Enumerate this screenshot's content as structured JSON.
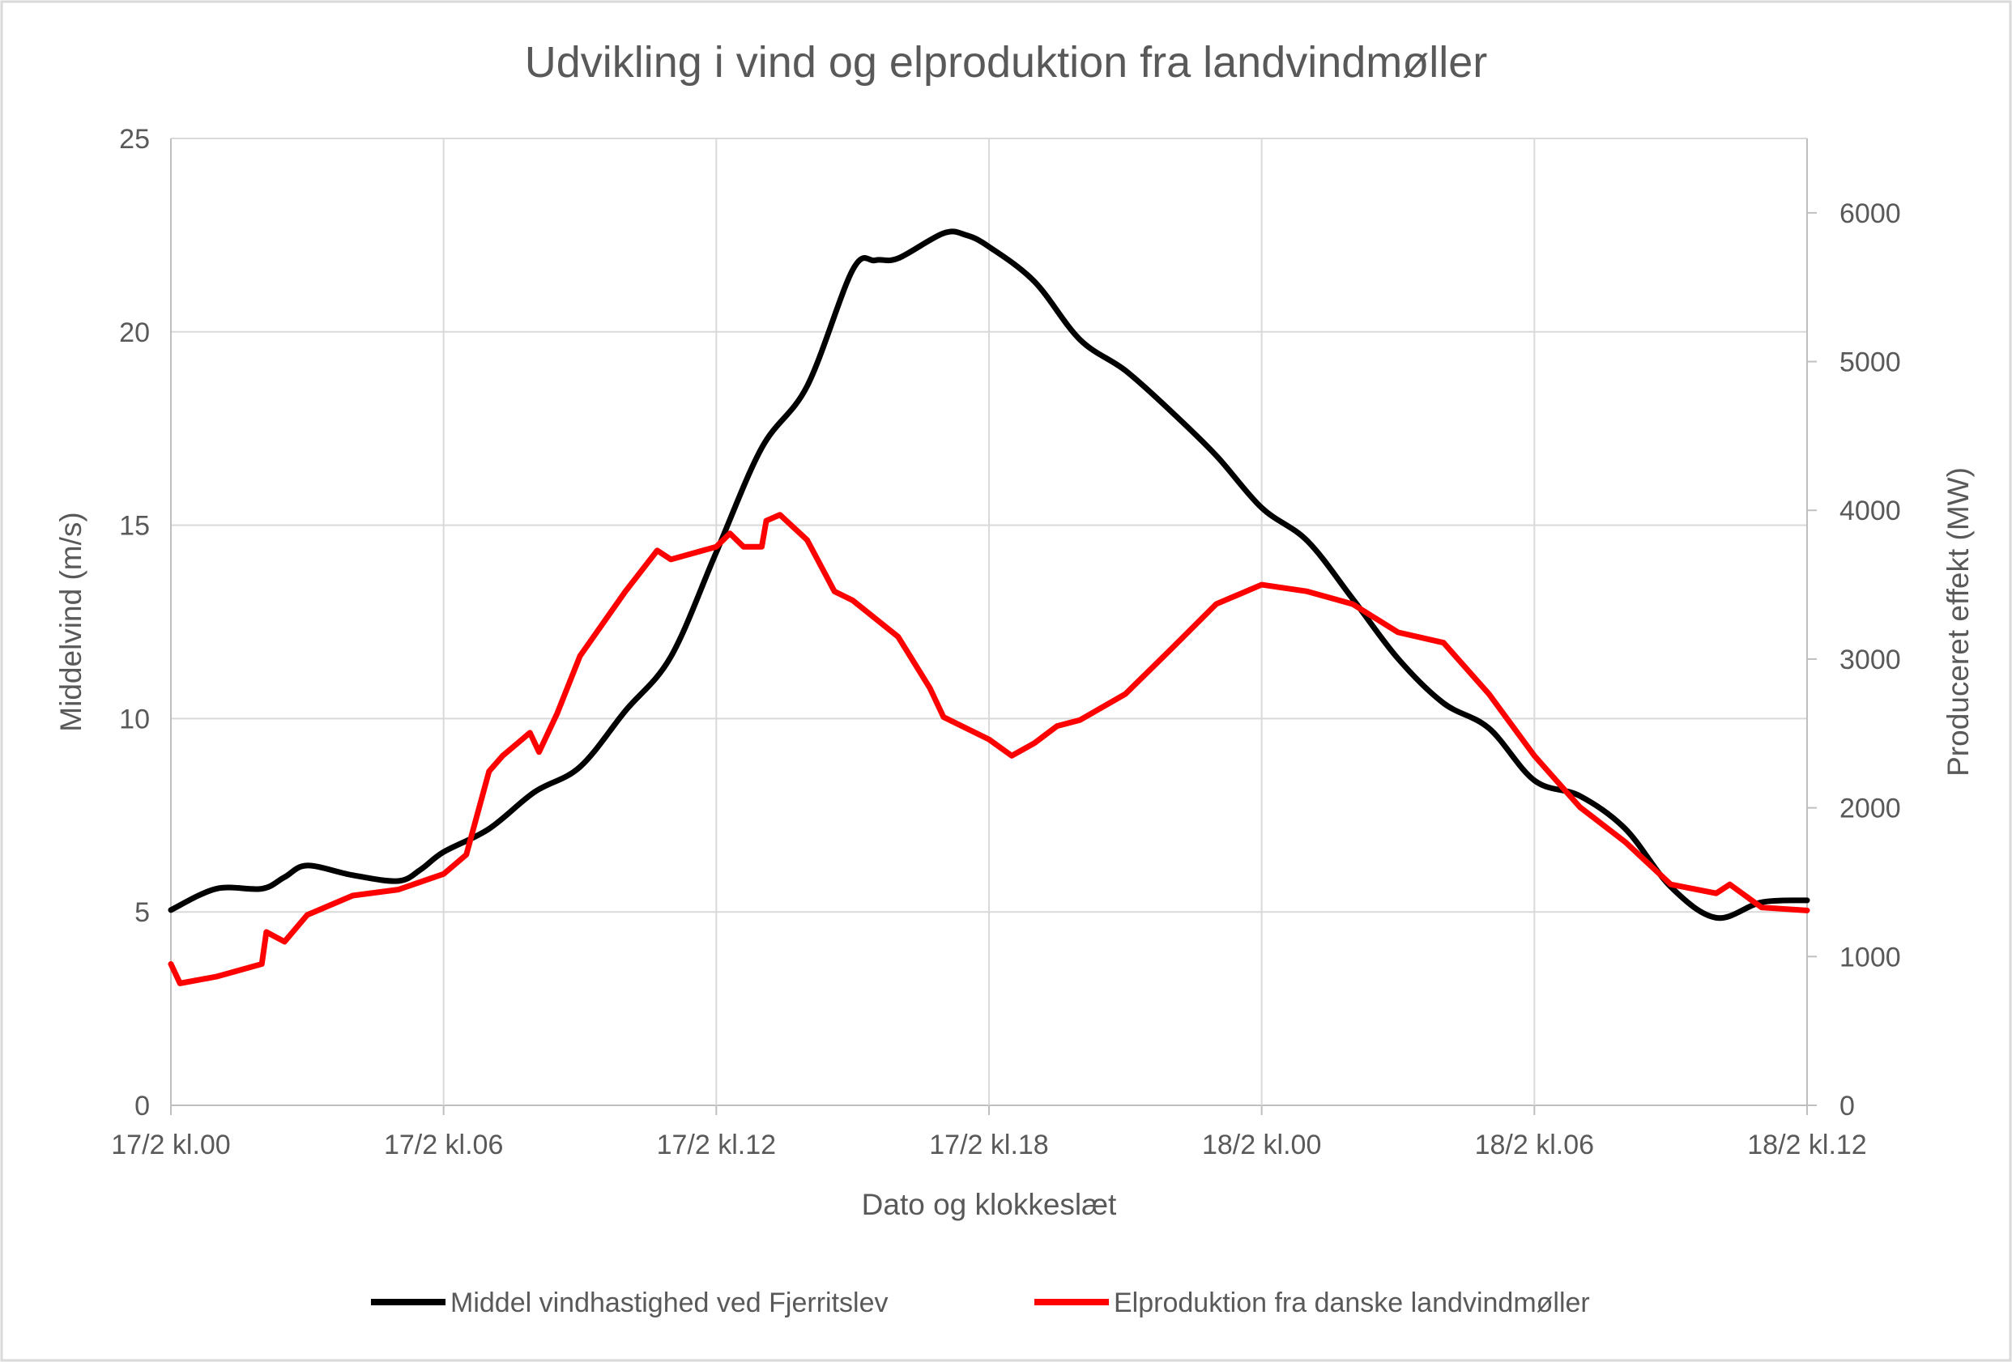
{
  "chart_data": {
    "type": "line",
    "title": "Udvikling i vind og elproduktion fra landvindmøller",
    "xlabel": "Dato og klokkeslæt",
    "ylabel": "Middelvind (m/s)",
    "y2label": "Produceret effekt  (MW)",
    "xticks": [
      "17/2 kl.00",
      "17/2 kl.06",
      "17/2 kl.12",
      "17/2 kl.18",
      "18/2 kl.00",
      "18/2 kl.06",
      "18/2 kl.12"
    ],
    "xlim": [
      "17/2 00:00",
      "18/2 12:00"
    ],
    "ylim": [
      0,
      25
    ],
    "yticks": [
      0,
      5,
      10,
      15,
      20,
      25
    ],
    "y2lim": [
      0,
      6500
    ],
    "y2ticks": [
      0,
      1000,
      2000,
      3000,
      4000,
      5000,
      6000
    ],
    "grid": true,
    "legend_position": "bottom",
    "series": [
      {
        "name": "Middel vindhastighed ved Fjerritslev",
        "axis": "left",
        "color": "#000000",
        "x": [
          "17/2 00:00",
          "17/2 01:00",
          "17/2 02:00",
          "17/2 02:30",
          "17/2 03:00",
          "17/2 04:00",
          "17/2 05:00",
          "17/2 05:30",
          "17/2 06:00",
          "17/2 07:00",
          "17/2 08:00",
          "17/2 09:00",
          "17/2 10:00",
          "17/2 11:00",
          "17/2 12:00",
          "17/2 13:00",
          "17/2 14:00",
          "17/2 15:00",
          "17/2 15:30",
          "17/2 16:00",
          "17/2 17:00",
          "17/2 17:30",
          "17/2 18:00",
          "17/2 19:00",
          "17/2 20:00",
          "17/2 21:00",
          "17/2 22:00",
          "17/2 23:00",
          "18/2 00:00",
          "18/2 01:00",
          "18/2 02:00",
          "18/2 03:00",
          "18/2 04:00",
          "18/2 05:00",
          "18/2 06:00",
          "18/2 07:00",
          "18/2 08:00",
          "18/2 09:00",
          "18/2 10:00",
          "18/2 11:00",
          "18/2 12:00"
        ],
        "y": [
          5.05,
          5.6,
          5.6,
          5.9,
          6.2,
          5.95,
          5.8,
          6.1,
          6.55,
          7.15,
          8.1,
          8.75,
          10.2,
          11.6,
          14.3,
          17.0,
          18.6,
          21.6,
          21.85,
          21.9,
          22.55,
          22.5,
          22.2,
          21.3,
          19.8,
          19.0,
          17.95,
          16.8,
          15.45,
          14.6,
          13.1,
          11.55,
          10.4,
          9.75,
          8.4,
          8.0,
          7.15,
          5.65,
          4.85,
          5.25,
          5.3
        ]
      },
      {
        "name": "Elproduktion fra danske landvindmøller",
        "axis": "right",
        "color": "#FF0000",
        "x": [
          "17/2 00:00",
          "17/2 00:12",
          "17/2 01:00",
          "17/2 02:00",
          "17/2 02:06",
          "17/2 02:30",
          "17/2 03:00",
          "17/2 04:00",
          "17/2 05:00",
          "17/2 06:00",
          "17/2 06:30",
          "17/2 07:00",
          "17/2 07:18",
          "17/2 07:54",
          "17/2 08:06",
          "17/2 08:30",
          "17/2 09:00",
          "17/2 10:00",
          "17/2 10:42",
          "17/2 11:00",
          "17/2 12:00",
          "17/2 12:18",
          "17/2 12:36",
          "17/2 13:00",
          "17/2 13:06",
          "17/2 13:24",
          "17/2 14:00",
          "17/2 14:36",
          "17/2 15:00",
          "17/2 16:00",
          "17/2 16:42",
          "17/2 17:00",
          "17/2 18:00",
          "17/2 18:30",
          "17/2 19:00",
          "17/2 19:30",
          "17/2 20:00",
          "17/2 21:00",
          "17/2 22:00",
          "17/2 23:00",
          "18/2 00:00",
          "18/2 01:00",
          "18/2 02:00",
          "18/2 03:00",
          "18/2 04:00",
          "18/2 05:00",
          "18/2 06:00",
          "18/2 07:00",
          "18/2 08:00",
          "18/2 09:00",
          "18/2 10:00",
          "18/2 10:18",
          "18/2 11:00",
          "18/2 12:00"
        ],
        "y": [
          950,
          820,
          865,
          950,
          1165,
          1100,
          1280,
          1410,
          1450,
          1555,
          1685,
          2245,
          2350,
          2505,
          2375,
          2635,
          3020,
          3455,
          3730,
          3670,
          3755,
          3845,
          3755,
          3755,
          3930,
          3970,
          3800,
          3455,
          3395,
          3150,
          2805,
          2610,
          2460,
          2350,
          2435,
          2550,
          2590,
          2765,
          3065,
          3370,
          3500,
          3455,
          3370,
          3180,
          3110,
          2765,
          2350,
          2005,
          1770,
          1485,
          1425,
          1485,
          1330,
          1310
        ]
      }
    ]
  }
}
